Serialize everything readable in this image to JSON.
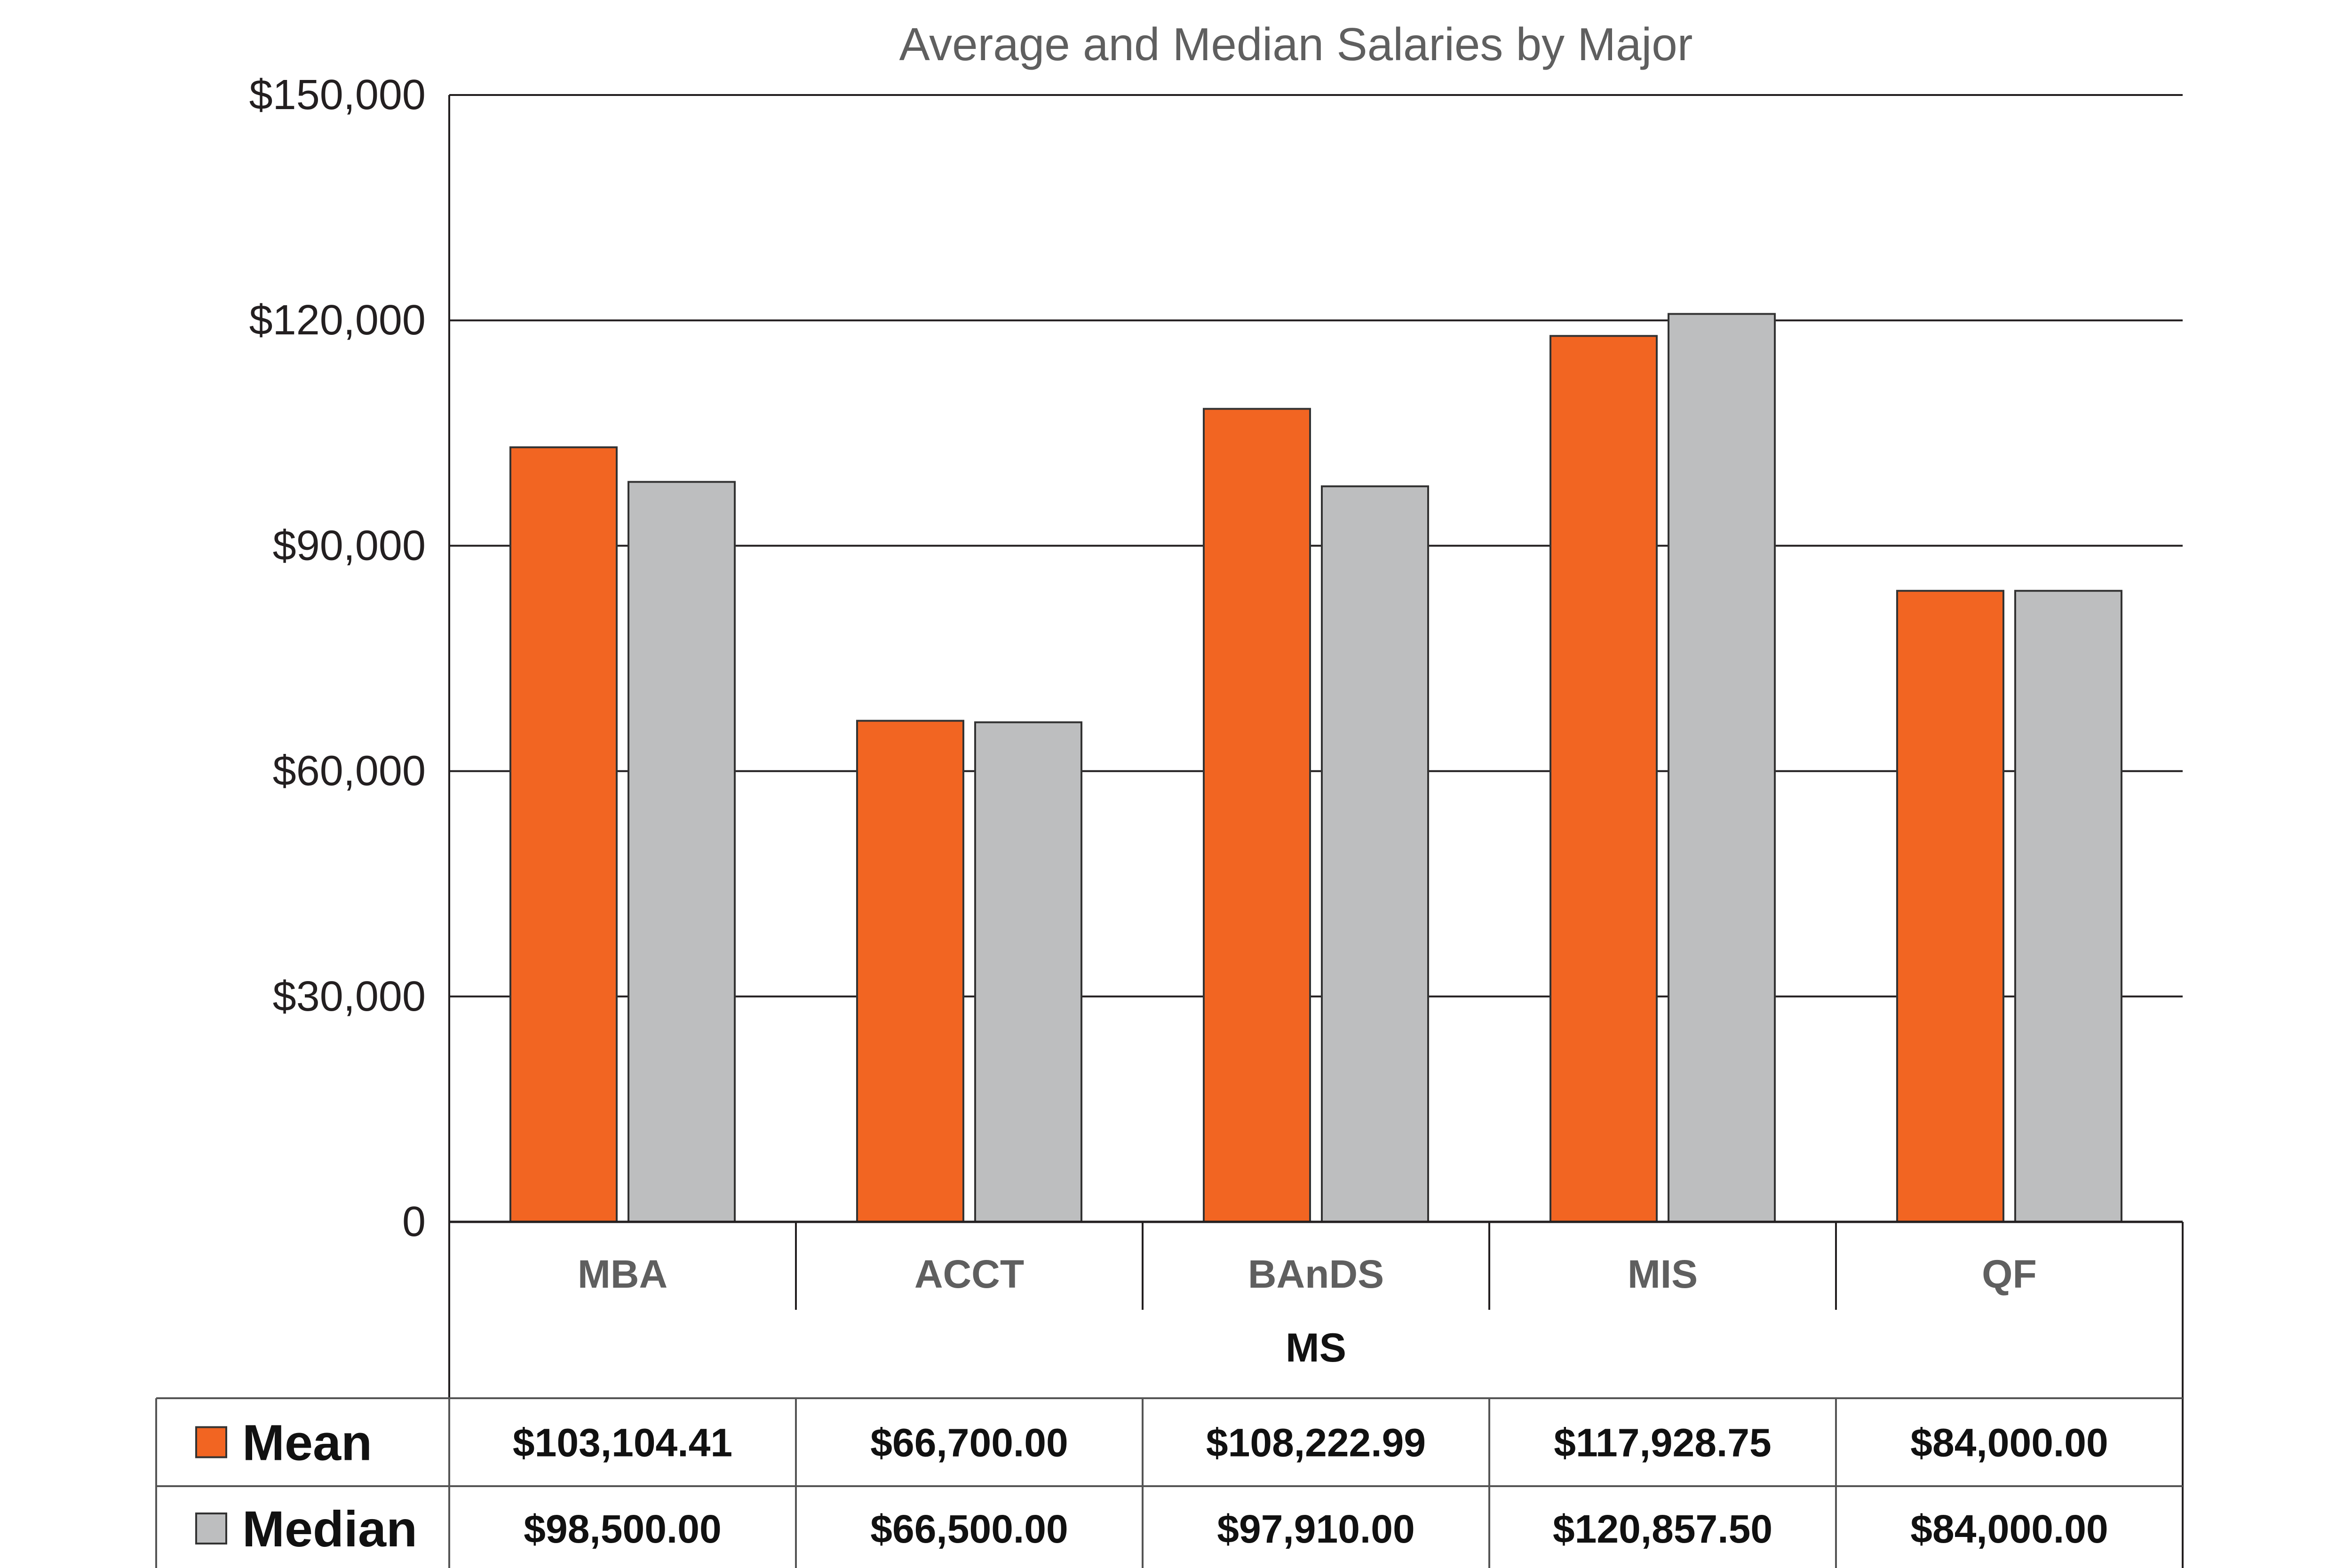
{
  "chart_data": {
    "type": "bar",
    "title": "Average and Median Salaries by Major",
    "group_label": "MS",
    "categories": [
      "MBA",
      "ACCT",
      "BAnDS",
      "MIS",
      "QF"
    ],
    "series": [
      {
        "name": "Mean",
        "color": "#f26522",
        "values": [
          103104.41,
          66700.0,
          108222.99,
          117928.75,
          84000.0
        ],
        "labels": [
          "$103,104.41",
          "$66,700.00",
          "$108,222.99",
          "$117,928.75",
          "$84,000.00"
        ]
      },
      {
        "name": "Median",
        "color": "#bdbebf",
        "values": [
          98500.0,
          66500.0,
          97910.0,
          120857.5,
          84000.0
        ],
        "labels": [
          "$98,500.00",
          "$66,500.00",
          "$97,910.00",
          "$120,857.50",
          "$84,000.00"
        ]
      }
    ],
    "ylim": [
      0,
      150000
    ],
    "yticks": [
      0,
      30000,
      60000,
      90000,
      120000,
      150000
    ],
    "ytick_labels": [
      "0",
      "$30,000",
      "$60,000",
      "$90,000",
      "$120,000",
      "$150,000"
    ],
    "grid": true,
    "legend": "data-table-rows"
  }
}
